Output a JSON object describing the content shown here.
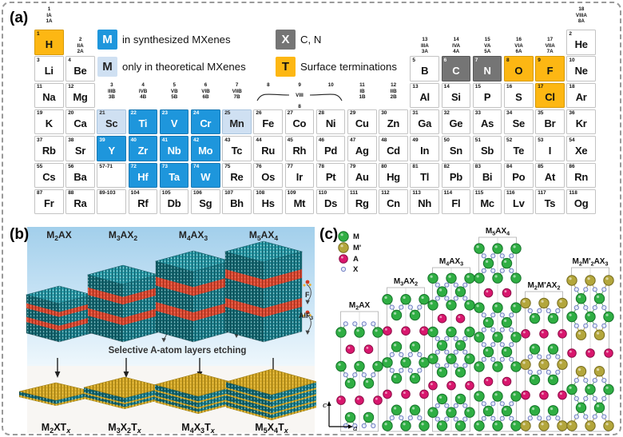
{
  "labels": {
    "a": "(a)",
    "b": "(b)",
    "c": "(c)"
  },
  "colors": {
    "synthesized_m": "#1e96dc",
    "theoretical_m": "#cfe0f2",
    "x_elements": "#757575",
    "terminations": "#fdb713",
    "crystal_teal": "#18727f",
    "a_layer_red": "#dc4a33",
    "termination_gold": "#d4a829",
    "m_atom": "#2fae43",
    "m_prime_atom": "#b3a63c",
    "a_atom": "#d9176e",
    "x_atom": "#e7ebf8"
  },
  "periodic_table": {
    "legend": [
      {
        "chip": "M",
        "chip_type": "synthesized",
        "label": "in synthesized MXenes"
      },
      {
        "chip": "M",
        "chip_type": "theoretical",
        "label": "only in theoretical MXenes"
      },
      {
        "chip": "X",
        "chip_type": "xgroup",
        "label": "C, N"
      },
      {
        "chip": "T",
        "chip_type": "termination",
        "label": "Surface terminations"
      }
    ],
    "group_headers": [
      {
        "col": 1,
        "zone": "top",
        "lines": [
          "1",
          "IA",
          "1A"
        ]
      },
      {
        "col": 2,
        "zone": "row1",
        "lines": [
          "2",
          "IIA",
          "2A"
        ]
      },
      {
        "col": 3,
        "zone": "row3",
        "lines": [
          "3",
          "IIIB",
          "3B"
        ]
      },
      {
        "col": 4,
        "zone": "row3",
        "lines": [
          "4",
          "IVB",
          "4B"
        ]
      },
      {
        "col": 5,
        "zone": "row3",
        "lines": [
          "5",
          "VB",
          "5B"
        ]
      },
      {
        "col": 6,
        "zone": "row3",
        "lines": [
          "6",
          "VIB",
          "6B"
        ]
      },
      {
        "col": 7,
        "zone": "row3",
        "lines": [
          "7",
          "VIIB",
          "7B"
        ]
      },
      {
        "col": 8,
        "zone": "row3",
        "lines": [
          "8"
        ]
      },
      {
        "col": 9,
        "zone": "row3",
        "lines": [
          "9",
          "VIII",
          "8"
        ],
        "bracket": true
      },
      {
        "col": 10,
        "zone": "row3",
        "lines": [
          "10"
        ]
      },
      {
        "col": 11,
        "zone": "row3",
        "lines": [
          "11",
          "IB",
          "1B"
        ]
      },
      {
        "col": 12,
        "zone": "row3",
        "lines": [
          "12",
          "IIB",
          "2B"
        ]
      },
      {
        "col": 13,
        "zone": "row1",
        "lines": [
          "13",
          "IIIA",
          "3A"
        ]
      },
      {
        "col": 14,
        "zone": "row1",
        "lines": [
          "14",
          "IVA",
          "4A"
        ]
      },
      {
        "col": 15,
        "zone": "row1",
        "lines": [
          "15",
          "VA",
          "5A"
        ]
      },
      {
        "col": 16,
        "zone": "row1",
        "lines": [
          "16",
          "VIA",
          "6A"
        ]
      },
      {
        "col": 17,
        "zone": "row1",
        "lines": [
          "17",
          "VIIA",
          "7A"
        ]
      },
      {
        "col": 18,
        "zone": "top",
        "lines": [
          "18",
          "VIIIA",
          "8A"
        ]
      }
    ],
    "ranges": [
      {
        "label": "57-71",
        "col": 3,
        "row": 6
      },
      {
        "label": "89-103",
        "col": 3,
        "row": 7
      }
    ],
    "elements": [
      [
        1,
        "H",
        1,
        1,
        "f"
      ],
      [
        2,
        "He",
        18,
        1,
        ""
      ],
      [
        3,
        "Li",
        1,
        2,
        ""
      ],
      [
        4,
        "Be",
        2,
        2,
        ""
      ],
      [
        5,
        "B",
        13,
        2,
        ""
      ],
      [
        6,
        "C",
        14,
        2,
        "x"
      ],
      [
        7,
        "N",
        15,
        2,
        "x"
      ],
      [
        8,
        "O",
        16,
        2,
        "f"
      ],
      [
        9,
        "F",
        17,
        2,
        "f"
      ],
      [
        10,
        "Ne",
        18,
        2,
        ""
      ],
      [
        11,
        "Na",
        1,
        3,
        ""
      ],
      [
        12,
        "Mg",
        2,
        3,
        ""
      ],
      [
        13,
        "Al",
        13,
        3,
        ""
      ],
      [
        14,
        "Si",
        14,
        3,
        ""
      ],
      [
        15,
        "P",
        15,
        3,
        ""
      ],
      [
        16,
        "S",
        16,
        3,
        ""
      ],
      [
        17,
        "Cl",
        17,
        3,
        "f"
      ],
      [
        18,
        "Ar",
        18,
        3,
        ""
      ],
      [
        19,
        "K",
        1,
        4,
        ""
      ],
      [
        20,
        "Ca",
        2,
        4,
        ""
      ],
      [
        21,
        "Sc",
        3,
        4,
        "t"
      ],
      [
        22,
        "Ti",
        4,
        4,
        "s"
      ],
      [
        23,
        "V",
        5,
        4,
        "s"
      ],
      [
        24,
        "Cr",
        6,
        4,
        "s"
      ],
      [
        25,
        "Mn",
        7,
        4,
        "t"
      ],
      [
        26,
        "Fe",
        8,
        4,
        ""
      ],
      [
        27,
        "Co",
        9,
        4,
        ""
      ],
      [
        28,
        "Ni",
        10,
        4,
        ""
      ],
      [
        29,
        "Cu",
        11,
        4,
        ""
      ],
      [
        30,
        "Zn",
        12,
        4,
        ""
      ],
      [
        31,
        "Ga",
        13,
        4,
        ""
      ],
      [
        32,
        "Ge",
        14,
        4,
        ""
      ],
      [
        33,
        "As",
        15,
        4,
        ""
      ],
      [
        34,
        "Se",
        16,
        4,
        ""
      ],
      [
        35,
        "Br",
        17,
        4,
        ""
      ],
      [
        36,
        "Kr",
        18,
        4,
        ""
      ],
      [
        37,
        "Rb",
        1,
        5,
        ""
      ],
      [
        38,
        "Sr",
        2,
        5,
        ""
      ],
      [
        39,
        "Y",
        3,
        5,
        "s"
      ],
      [
        40,
        "Zr",
        4,
        5,
        "s"
      ],
      [
        41,
        "Nb",
        5,
        5,
        "s"
      ],
      [
        42,
        "Mo",
        6,
        5,
        "s"
      ],
      [
        43,
        "Tc",
        7,
        5,
        ""
      ],
      [
        44,
        "Ru",
        8,
        5,
        ""
      ],
      [
        45,
        "Rh",
        9,
        5,
        ""
      ],
      [
        46,
        "Pd",
        10,
        5,
        ""
      ],
      [
        47,
        "Ag",
        11,
        5,
        ""
      ],
      [
        48,
        "Cd",
        12,
        5,
        ""
      ],
      [
        49,
        "In",
        13,
        5,
        ""
      ],
      [
        50,
        "Sn",
        14,
        5,
        ""
      ],
      [
        51,
        "Sb",
        15,
        5,
        ""
      ],
      [
        52,
        "Te",
        16,
        5,
        ""
      ],
      [
        53,
        "I",
        17,
        5,
        ""
      ],
      [
        54,
        "Xe",
        18,
        5,
        ""
      ],
      [
        55,
        "Cs",
        1,
        6,
        ""
      ],
      [
        56,
        "Ba",
        2,
        6,
        ""
      ],
      [
        72,
        "Hf",
        4,
        6,
        "s"
      ],
      [
        73,
        "Ta",
        5,
        6,
        "s"
      ],
      [
        74,
        "W",
        6,
        6,
        "s"
      ],
      [
        75,
        "Re",
        7,
        6,
        ""
      ],
      [
        76,
        "Os",
        8,
        6,
        ""
      ],
      [
        77,
        "Ir",
        9,
        6,
        ""
      ],
      [
        78,
        "Pt",
        10,
        6,
        ""
      ],
      [
        79,
        "Au",
        11,
        6,
        ""
      ],
      [
        80,
        "Hg",
        12,
        6,
        ""
      ],
      [
        81,
        "Tl",
        13,
        6,
        ""
      ],
      [
        82,
        "Pb",
        14,
        6,
        ""
      ],
      [
        83,
        "Bi",
        15,
        6,
        ""
      ],
      [
        84,
        "Po",
        16,
        6,
        ""
      ],
      [
        85,
        "At",
        17,
        6,
        ""
      ],
      [
        86,
        "Rn",
        18,
        6,
        ""
      ],
      [
        87,
        "Fr",
        1,
        7,
        ""
      ],
      [
        88,
        "Ra",
        2,
        7,
        ""
      ],
      [
        104,
        "Rf",
        4,
        7,
        ""
      ],
      [
        105,
        "Db",
        5,
        7,
        ""
      ],
      [
        106,
        "Sg",
        6,
        7,
        ""
      ],
      [
        107,
        "Bh",
        7,
        7,
        ""
      ],
      [
        108,
        "Hs",
        8,
        7,
        ""
      ],
      [
        109,
        "Mt",
        9,
        7,
        ""
      ],
      [
        110,
        "Ds",
        10,
        7,
        ""
      ],
      [
        111,
        "Rg",
        11,
        7,
        ""
      ],
      [
        112,
        "Cn",
        12,
        7,
        ""
      ],
      [
        113,
        "Nh",
        13,
        7,
        ""
      ],
      [
        114,
        "Fl",
        14,
        7,
        ""
      ],
      [
        115,
        "Mc",
        15,
        7,
        ""
      ],
      [
        116,
        "Lv",
        16,
        7,
        ""
      ],
      [
        117,
        "Ts",
        17,
        7,
        ""
      ],
      [
        118,
        "Og",
        18,
        7,
        ""
      ]
    ]
  },
  "panel_b": {
    "max_labels": [
      "M|2|AX",
      "M|3|AX|2",
      "M|4|AX|3",
      "M|5|AX|4"
    ],
    "mxene_labels": [
      "M|2|XT|x",
      "M|3|X|2|T|x",
      "M|4|X|3|T|x",
      "M|5|X|4|T|x"
    ],
    "process_label": "Selective A-atom layers etching",
    "etchant_labels": [
      "F",
      "AlF|3"
    ]
  },
  "panel_c": {
    "legend": [
      {
        "label": "M",
        "type": "M"
      },
      {
        "label": "M'",
        "type": "Mp"
      },
      {
        "label": "A",
        "type": "A"
      },
      {
        "label": "X",
        "type": "X"
      }
    ],
    "axis": {
      "vertical": "c",
      "horizontal": "a"
    },
    "structures": [
      {
        "label": "M|2|AX",
        "layers": [
          "X",
          "M",
          "A",
          "M",
          "X",
          "M",
          "A",
          "M",
          "X"
        ]
      },
      {
        "label": "M|3|AX|2",
        "layers": [
          "M",
          "X",
          "M",
          "A",
          "M",
          "X",
          "M",
          "X",
          "M",
          "A",
          "M",
          "X",
          "M"
        ]
      },
      {
        "label": "M|4|AX|3",
        "layers": [
          "M",
          "X",
          "M",
          "X",
          "M",
          "A",
          "M",
          "X",
          "M",
          "X",
          "M",
          "X",
          "M",
          "A",
          "M",
          "X",
          "M",
          "X",
          "M"
        ]
      },
      {
        "label": "M|5|AX|4",
        "layers": [
          "M",
          "X",
          "M",
          "X",
          "M",
          "A",
          "M",
          "X",
          "M",
          "X",
          "M",
          "X",
          "M",
          "X",
          "M",
          "A",
          "M",
          "X",
          "M",
          "X",
          "M"
        ]
      },
      {
        "label": "M|2|M'AX|2",
        "layers": [
          "Mp",
          "X",
          "M",
          "A",
          "M",
          "X",
          "Mp",
          "X",
          "M",
          "A",
          "M",
          "X",
          "Mp"
        ]
      },
      {
        "label": "M|2|M'|2|AX|3",
        "layers": [
          "Mp",
          "X",
          "M",
          "X",
          "M",
          "X",
          "Mp",
          "A",
          "Mp",
          "X",
          "M",
          "X",
          "M",
          "X",
          "Mp"
        ]
      }
    ]
  }
}
